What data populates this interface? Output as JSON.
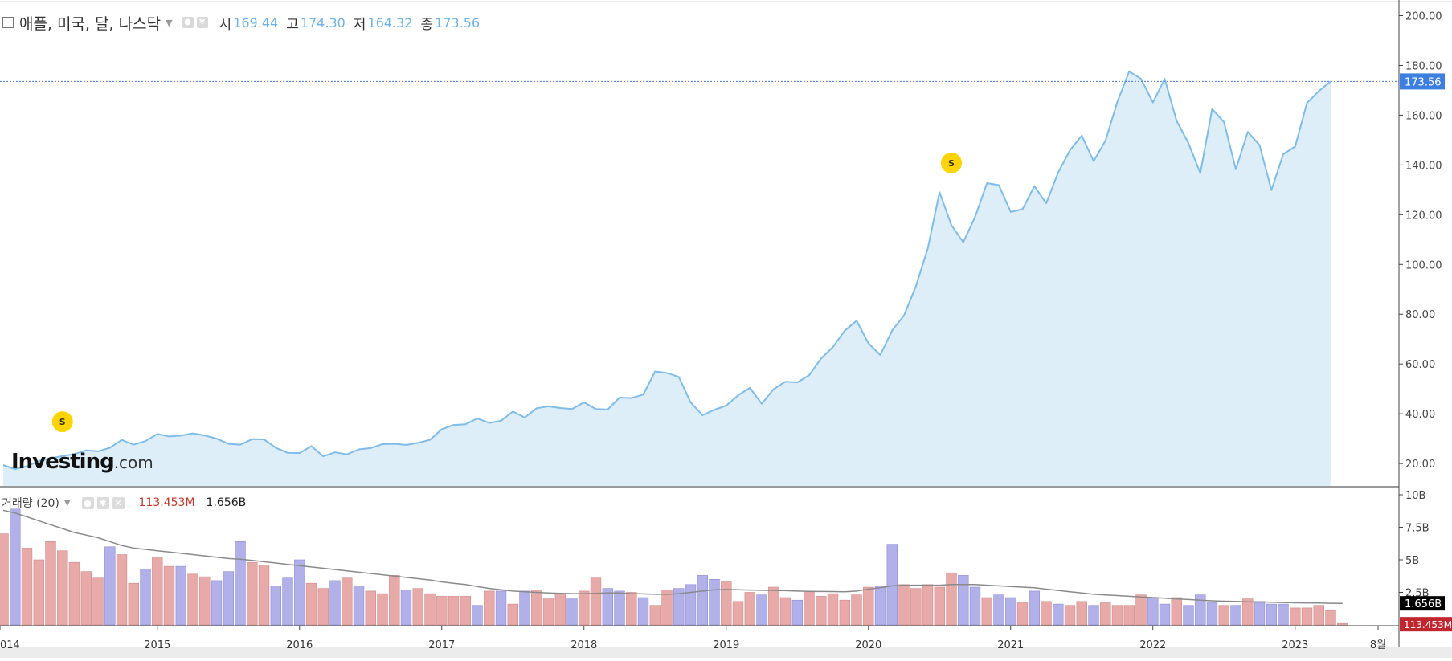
{
  "legend": {
    "instrument": "애플, 미국, 달, 나스닥",
    "open_label": "시",
    "open": "169.44",
    "high_label": "고",
    "high": "174.30",
    "low_label": "저",
    "low": "164.32",
    "close_label": "종",
    "close": "173.56"
  },
  "volume_legend": {
    "title": "거래량 (20)",
    "last_volume": "113.453M",
    "avg_volume": "1.656B"
  },
  "logo": {
    "name": "Investing",
    "suffix": ".com"
  },
  "colors": {
    "line": "#7fbce9",
    "area": "#deeef9",
    "vol_up": "#b1b0e8",
    "vol_down": "#e8a9a9",
    "price_tag": "#3d7fe0",
    "vol_tag_avg": "#000000",
    "vol_tag_last": "#c0262d",
    "marker": "#ffd400"
  },
  "chart_data": [
    {
      "type": "area",
      "title": "",
      "x_unit": "month",
      "x_ticks": [
        "014",
        "2015",
        "2016",
        "2017",
        "2018",
        "2019",
        "2020",
        "2021",
        "2022",
        "2023",
        "8월"
      ],
      "y_ticks": [
        "20.00",
        "40.00",
        "60.00",
        "80.00",
        "100.00",
        "120.00",
        "140.00",
        "160.00",
        "180.00",
        "200.00"
      ],
      "ylim": [
        11,
        205
      ],
      "current_price_label": "173.56",
      "current_price": 173.56,
      "dividend_markers": [
        {
          "label": "S",
          "date": "2014-05",
          "y": 36.8
        },
        {
          "label": "S",
          "date": "2020-08",
          "y": 140.8
        }
      ],
      "start": "2013-12",
      "values": [
        19.4,
        17.7,
        18.9,
        21.0,
        22.1,
        23.0,
        23.8,
        25.3,
        24.9,
        26.3,
        29.5,
        27.6,
        29.0,
        31.9,
        30.9,
        31.2,
        32.1,
        31.3,
        30.0,
        27.9,
        27.6,
        29.8,
        29.7,
        26.3,
        24.3,
        24.2,
        27.0,
        22.9,
        24.5,
        23.7,
        25.7,
        26.2,
        27.8,
        27.9,
        27.5,
        28.3,
        29.5,
        33.8,
        35.5,
        35.8,
        38.1,
        36.3,
        37.2,
        40.9,
        38.5,
        42.2,
        43.0,
        42.3,
        41.9,
        44.6,
        41.9,
        41.7,
        46.5,
        46.3,
        47.7,
        57.0,
        56.4,
        54.8,
        44.6,
        39.4,
        41.6,
        43.3,
        47.4,
        50.4,
        44.0,
        49.9,
        52.9,
        52.6,
        55.5,
        62.2,
        66.8,
        73.4,
        77.4,
        68.3,
        63.6,
        73.5,
        79.5,
        91.2,
        106.3,
        129.0,
        115.8,
        108.9,
        119.1,
        132.7,
        131.9,
        121.1,
        122.2,
        131.5,
        124.6,
        136.9,
        145.9,
        151.8,
        141.5,
        149.8,
        165.3,
        177.6,
        174.6,
        165.1,
        174.6,
        157.7,
        148.8,
        136.7,
        162.5,
        157.2,
        138.2,
        153.3,
        148.0,
        129.9,
        144.3,
        147.4,
        164.9,
        169.7,
        173.6
      ]
    },
    {
      "type": "bar",
      "title": "",
      "y_ticks": [
        "10B",
        "7.5B",
        "5B",
        "2.5B"
      ],
      "ylim": [
        0,
        10
      ],
      "y_unit": "B",
      "start": "2013-12",
      "values": [
        7.0,
        8.9,
        5.9,
        5.0,
        6.4,
        5.7,
        4.8,
        4.1,
        3.6,
        6.0,
        5.4,
        3.2,
        4.3,
        5.2,
        4.5,
        4.5,
        3.9,
        3.7,
        3.4,
        4.1,
        6.4,
        4.8,
        4.6,
        3.0,
        3.6,
        5.0,
        3.2,
        2.8,
        3.4,
        3.6,
        3.0,
        2.6,
        2.4,
        3.8,
        2.7,
        2.8,
        2.4,
        2.2,
        2.2,
        2.2,
        1.5,
        2.6,
        2.6,
        1.6,
        2.6,
        2.7,
        2.0,
        2.4,
        2.0,
        2.6,
        3.6,
        2.8,
        2.6,
        2.5,
        2.1,
        1.5,
        2.7,
        2.8,
        3.1,
        3.8,
        3.5,
        3.3,
        1.8,
        2.5,
        2.3,
        2.9,
        2.1,
        1.9,
        2.6,
        2.2,
        2.4,
        1.9,
        2.3,
        2.9,
        3.0,
        6.2,
        3.1,
        2.8,
        3.1,
        2.9,
        4.0,
        3.8,
        2.9,
        2.1,
        2.3,
        2.1,
        1.7,
        2.6,
        1.8,
        1.6,
        1.5,
        1.8,
        1.5,
        1.7,
        1.5,
        1.5,
        2.3,
        2.1,
        1.6,
        2.1,
        1.5,
        2.3,
        1.7,
        1.5,
        1.5,
        2.0,
        1.8,
        1.6,
        1.6,
        1.3,
        1.3,
        1.5,
        1.1,
        0.113
      ],
      "up": [
        0,
        1,
        0,
        0,
        0,
        0,
        0,
        0,
        0,
        1,
        0,
        0,
        1,
        0,
        0,
        1,
        0,
        0,
        1,
        1,
        1,
        0,
        0,
        1,
        1,
        1,
        0,
        0,
        1,
        0,
        1,
        0,
        0,
        0,
        1,
        0,
        0,
        0,
        0,
        0,
        1,
        0,
        1,
        0,
        1,
        0,
        0,
        0,
        1,
        0,
        0,
        1,
        1,
        0,
        1,
        0,
        0,
        1,
        1,
        1,
        1,
        0,
        0,
        0,
        1,
        0,
        0,
        1,
        0,
        0,
        0,
        0,
        0,
        0,
        1,
        1,
        0,
        0,
        0,
        0,
        0,
        1,
        1,
        0,
        1,
        1,
        0,
        1,
        0,
        1,
        0,
        0,
        1,
        0,
        0,
        0,
        0,
        1,
        1,
        0,
        1,
        1,
        1,
        0,
        1,
        0,
        1,
        1,
        1,
        0,
        0,
        0,
        0,
        0
      ],
      "moving_average": [
        8.8,
        8.6,
        8.3,
        8.0,
        7.7,
        7.4,
        7.1,
        6.9,
        6.7,
        6.4,
        6.1,
        5.9,
        5.8,
        5.7,
        5.6,
        5.5,
        5.4,
        5.3,
        5.2,
        5.1,
        5.05,
        4.95,
        4.85,
        4.75,
        4.65,
        4.55,
        4.45,
        4.35,
        4.25,
        4.15,
        4.05,
        3.95,
        3.85,
        3.75,
        3.65,
        3.55,
        3.45,
        3.3,
        3.2,
        3.1,
        2.95,
        2.8,
        2.7,
        2.6,
        2.55,
        2.5,
        2.45,
        2.42,
        2.4,
        2.4,
        2.42,
        2.45,
        2.45,
        2.4,
        2.38,
        2.35,
        2.35,
        2.4,
        2.5,
        2.6,
        2.7,
        2.72,
        2.7,
        2.68,
        2.66,
        2.65,
        2.63,
        2.6,
        2.58,
        2.57,
        2.56,
        2.55,
        2.6,
        2.75,
        2.85,
        3.0,
        3.05,
        3.05,
        3.05,
        3.05,
        3.1,
        3.1,
        3.1,
        3.05,
        3.0,
        2.95,
        2.9,
        2.85,
        2.75,
        2.65,
        2.55,
        2.45,
        2.35,
        2.3,
        2.25,
        2.2,
        2.15,
        2.1,
        2.05,
        2.0,
        1.95,
        1.9,
        1.85,
        1.82,
        1.8,
        1.78,
        1.76,
        1.74,
        1.72,
        1.7,
        1.69,
        1.68,
        1.66,
        1.656
      ],
      "average_label": "1.656B",
      "last_label": "113.453M"
    }
  ]
}
